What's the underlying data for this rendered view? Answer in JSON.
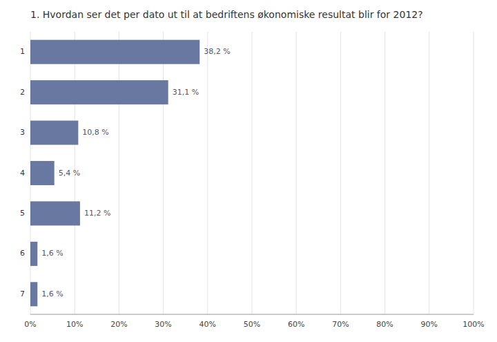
{
  "chart_data": {
    "type": "bar",
    "orientation": "horizontal",
    "title": "1. Hvordan ser det per dato ut til at bedriftens økonomiske resultat blir for 2012?",
    "categories": [
      "1",
      "2",
      "3",
      "4",
      "5",
      "6",
      "7"
    ],
    "values": [
      38.2,
      31.1,
      10.8,
      5.4,
      11.2,
      1.6,
      1.6
    ],
    "value_labels": [
      "38,2 %",
      "31,1 %",
      "10,8 %",
      "5,4 %",
      "11,2 %",
      "1,6 %",
      "1,6 %"
    ],
    "data_labels": true,
    "color": "#6878a0",
    "xlim": [
      0,
      100
    ],
    "xticks": [
      {
        "value": 0,
        "label": "0%"
      },
      {
        "value": 10,
        "label": "10%"
      },
      {
        "value": 20,
        "label": "20%"
      },
      {
        "value": 30,
        "label": "30%"
      },
      {
        "value": 40,
        "label": "40%"
      },
      {
        "value": 50,
        "label": "50%"
      },
      {
        "value": 60,
        "label": "60%"
      },
      {
        "value": 70,
        "label": "70%"
      },
      {
        "value": 80,
        "label": "80%"
      },
      {
        "value": 90,
        "label": "90%"
      },
      {
        "value": 100,
        "label": "100%"
      }
    ],
    "grid": true
  }
}
